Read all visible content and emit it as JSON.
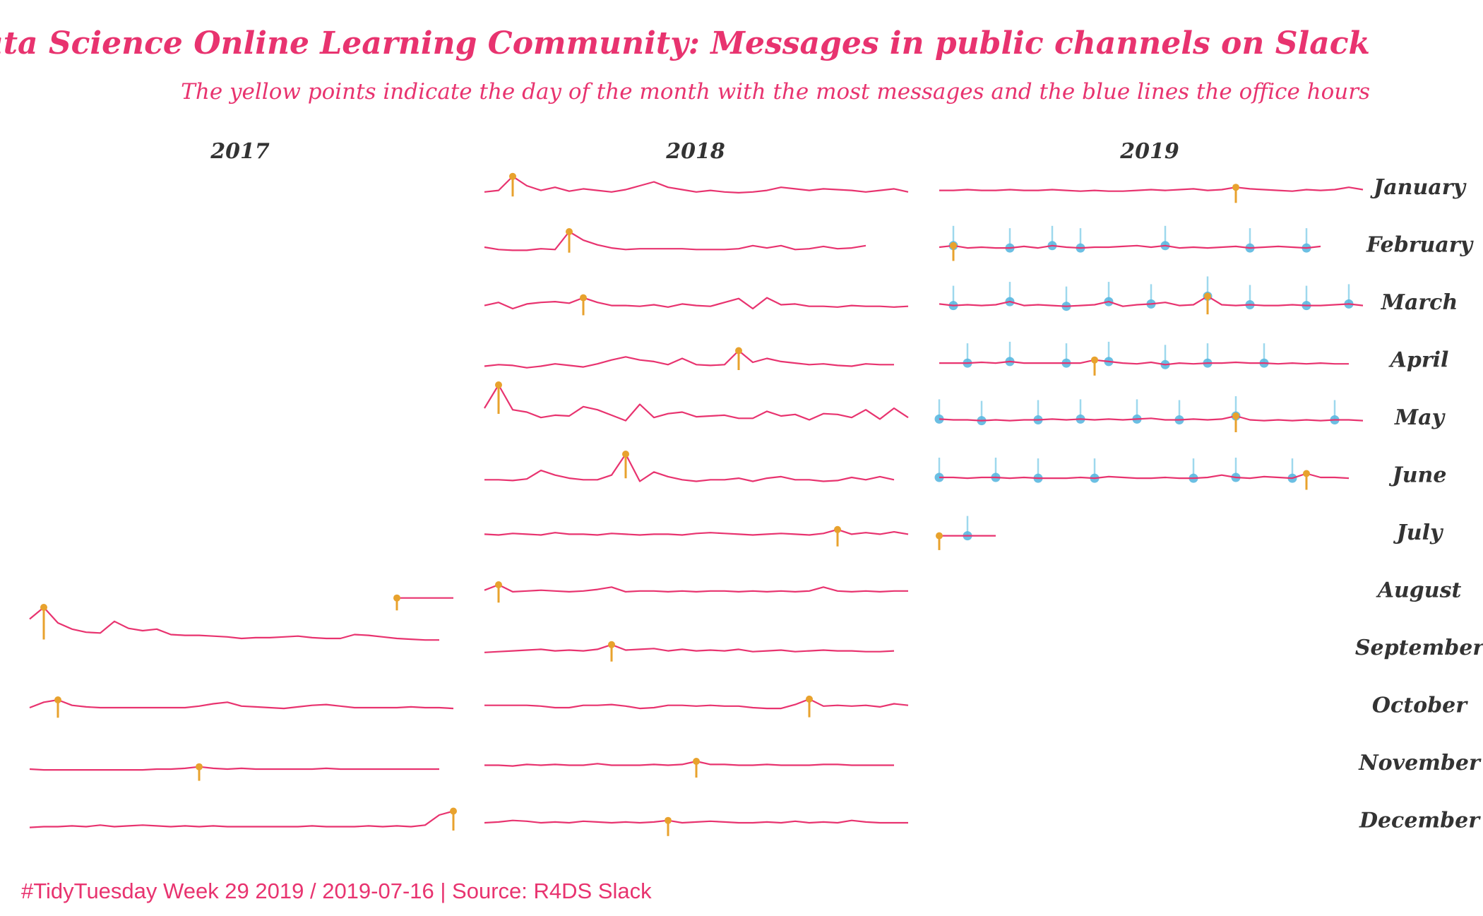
{
  "chart_data": {
    "type": "line",
    "title": "R for Data Science Online Learning Community: Messages in public channels on Slack",
    "subtitle": "The yellow points indicate the day of the month with the most messages and the blue lines the office hours",
    "caption": "#TidyTuesday Week 29 2019 / 2019-07-16 | Source: R4DS Slack",
    "years": [
      "2017",
      "2018",
      "2019"
    ],
    "months": [
      "January",
      "February",
      "March",
      "April",
      "May",
      "June",
      "July",
      "August",
      "September",
      "October",
      "November",
      "December"
    ],
    "colors": {
      "line": "#e8336f",
      "peak": "#e8a22d",
      "office_hours": "#7ecbe8",
      "office_hours_point": "#5bb8e0",
      "title": "#e8336f",
      "labels": "#333333"
    },
    "panels": [
      {
        "year": "2017",
        "month": "August",
        "first_day": 27,
        "days": 31,
        "peak_day": 27,
        "office_hours": [],
        "messages": [
          8,
          8,
          8,
          8,
          8
        ]
      },
      {
        "year": "2017",
        "month": "September",
        "first_day": 1,
        "days": 30,
        "peak_day": 2,
        "office_hours": [],
        "messages": [
          55,
          70,
          50,
          42,
          38,
          37,
          52,
          43,
          40,
          42,
          35,
          34,
          34,
          33,
          32,
          30,
          31,
          31,
          32,
          33,
          31,
          30,
          30,
          35,
          34,
          32,
          30,
          29,
          28,
          28
        ]
      },
      {
        "year": "2017",
        "month": "October",
        "first_day": 1,
        "days": 31,
        "peak_day": 3,
        "office_hours": [],
        "messages": [
          15,
          22,
          25,
          18,
          16,
          15,
          15,
          15,
          15,
          15,
          15,
          15,
          17,
          20,
          22,
          17,
          16,
          15,
          14,
          16,
          18,
          19,
          17,
          15,
          15,
          15,
          15,
          16,
          15,
          15,
          14
        ]
      },
      {
        "year": "2017",
        "month": "November",
        "first_day": 1,
        "days": 30,
        "peak_day": 13,
        "office_hours": [],
        "messages": [
          10,
          9,
          9,
          9,
          9,
          9,
          9,
          9,
          9,
          10,
          10,
          11,
          13,
          11,
          10,
          11,
          10,
          10,
          10,
          10,
          10,
          11,
          10,
          10,
          10,
          10,
          10,
          10,
          10,
          10
        ]
      },
      {
        "year": "2017",
        "month": "December",
        "first_day": 1,
        "days": 31,
        "peak_day": 31,
        "office_hours": [],
        "messages": [
          9,
          10,
          10,
          11,
          10,
          12,
          10,
          11,
          12,
          11,
          10,
          11,
          10,
          11,
          10,
          10,
          10,
          10,
          10,
          10,
          11,
          10,
          10,
          10,
          11,
          10,
          11,
          10,
          12,
          25,
          30
        ]
      },
      {
        "year": "2018",
        "month": "January",
        "first_day": 1,
        "days": 31,
        "peak_day": 3,
        "office_hours": [],
        "messages": [
          12,
          14,
          32,
          20,
          14,
          18,
          13,
          16,
          14,
          12,
          15,
          20,
          25,
          18,
          15,
          12,
          14,
          12,
          11,
          12,
          14,
          18,
          16,
          14,
          16,
          15,
          14,
          12,
          14,
          16,
          12
        ]
      },
      {
        "year": "2018",
        "month": "February",
        "first_day": 1,
        "days": 28,
        "peak_day": 7,
        "office_hours": [],
        "messages": [
          15,
          12,
          11,
          11,
          13,
          12,
          35,
          24,
          18,
          14,
          12,
          13,
          13,
          13,
          13,
          12,
          12,
          12,
          13,
          17,
          14,
          17,
          12,
          13,
          16,
          13,
          14,
          17
        ]
      },
      {
        "year": "2018",
        "month": "March",
        "first_day": 1,
        "days": 31,
        "peak_day": 8,
        "office_hours": [],
        "messages": [
          14,
          18,
          10,
          16,
          18,
          19,
          17,
          24,
          18,
          14,
          14,
          13,
          15,
          12,
          16,
          14,
          13,
          18,
          23,
          10,
          24,
          15,
          16,
          13,
          13,
          12,
          14,
          13,
          13,
          12,
          13
        ]
      },
      {
        "year": "2018",
        "month": "April",
        "first_day": 1,
        "days": 30,
        "peak_day": 19,
        "office_hours": [],
        "messages": [
          10,
          12,
          11,
          8,
          10,
          13,
          11,
          9,
          13,
          18,
          22,
          18,
          16,
          12,
          20,
          12,
          11,
          12,
          30,
          15,
          20,
          16,
          14,
          12,
          13,
          11,
          10,
          13,
          12,
          12
        ]
      },
      {
        "year": "2018",
        "month": "May",
        "first_day": 1,
        "days": 31,
        "peak_day": 2,
        "office_hours": [],
        "messages": [
          30,
          60,
          28,
          25,
          18,
          21,
          20,
          32,
          28,
          21,
          14,
          35,
          18,
          23,
          25,
          19,
          20,
          21,
          17,
          17,
          26,
          20,
          22,
          15,
          23,
          22,
          18,
          28,
          16,
          30,
          18
        ]
      },
      {
        "year": "2018",
        "month": "June",
        "first_day": 1,
        "days": 30,
        "peak_day": 11,
        "office_hours": [],
        "messages": [
          12,
          12,
          11,
          13,
          24,
          18,
          14,
          12,
          12,
          18,
          45,
          10,
          22,
          16,
          12,
          10,
          12,
          12,
          14,
          10,
          14,
          16,
          12,
          12,
          10,
          11,
          15,
          12,
          16,
          12
        ]
      },
      {
        "year": "2018",
        "month": "July",
        "first_day": 1,
        "days": 31,
        "peak_day": 26,
        "office_hours": [],
        "messages": [
          16,
          15,
          17,
          16,
          15,
          18,
          16,
          16,
          15,
          17,
          16,
          15,
          16,
          16,
          15,
          17,
          18,
          17,
          16,
          15,
          16,
          17,
          16,
          15,
          17,
          22,
          16,
          18,
          16,
          19,
          16
        ]
      },
      {
        "year": "2018",
        "month": "August",
        "first_day": 1,
        "days": 31,
        "peak_day": 2,
        "office_hours": [],
        "messages": [
          18,
          25,
          16,
          17,
          18,
          17,
          16,
          17,
          19,
          22,
          16,
          17,
          17,
          16,
          17,
          16,
          17,
          17,
          16,
          17,
          16,
          17,
          16,
          17,
          22,
          17,
          16,
          17,
          16,
          17,
          17
        ]
      },
      {
        "year": "2018",
        "month": "September",
        "first_day": 1,
        "days": 30,
        "peak_day": 10,
        "office_hours": [],
        "messages": [
          12,
          13,
          14,
          15,
          16,
          14,
          15,
          14,
          16,
          22,
          15,
          16,
          17,
          14,
          16,
          14,
          15,
          14,
          16,
          13,
          14,
          15,
          13,
          14,
          15,
          14,
          14,
          13,
          13,
          14
        ]
      },
      {
        "year": "2018",
        "month": "October",
        "first_day": 1,
        "days": 31,
        "peak_day": 24,
        "office_hours": [],
        "messages": [
          18,
          18,
          18,
          18,
          17,
          15,
          15,
          18,
          18,
          19,
          17,
          14,
          15,
          18,
          18,
          17,
          18,
          17,
          17,
          15,
          14,
          14,
          19,
          26,
          17,
          18,
          17,
          18,
          16,
          20,
          18
        ]
      },
      {
        "year": "2018",
        "month": "November",
        "first_day": 1,
        "days": 30,
        "peak_day": 16,
        "office_hours": [],
        "messages": [
          15,
          15,
          14,
          16,
          15,
          16,
          15,
          15,
          17,
          15,
          15,
          15,
          16,
          15,
          16,
          20,
          16,
          16,
          15,
          15,
          16,
          15,
          15,
          15,
          16,
          16,
          15,
          15,
          15,
          15
        ]
      },
      {
        "year": "2018",
        "month": "December",
        "first_day": 1,
        "days": 31,
        "peak_day": 14,
        "office_hours": [],
        "messages": [
          15,
          16,
          18,
          17,
          15,
          16,
          15,
          17,
          16,
          15,
          16,
          15,
          16,
          18,
          15,
          16,
          17,
          16,
          15,
          15,
          16,
          15,
          17,
          15,
          16,
          15,
          18,
          16,
          15,
          15,
          15
        ]
      },
      {
        "year": "2019",
        "month": "January",
        "first_day": 1,
        "days": 31,
        "peak_day": 22,
        "office_hours": [],
        "messages": [
          14,
          14,
          15,
          14,
          14,
          15,
          14,
          14,
          15,
          14,
          13,
          14,
          13,
          13,
          14,
          15,
          14,
          15,
          16,
          14,
          15,
          18,
          16,
          15,
          14,
          13,
          15,
          14,
          15,
          18,
          15
        ]
      },
      {
        "year": "2019",
        "month": "February",
        "first_day": 1,
        "days": 28,
        "peak_day": 2,
        "office_hours": [
          2,
          6,
          9,
          11,
          17,
          23,
          27
        ],
        "messages": [
          15,
          17,
          14,
          15,
          14,
          14,
          16,
          14,
          17,
          15,
          14,
          15,
          15,
          16,
          17,
          15,
          17,
          14,
          15,
          14,
          15,
          16,
          14,
          15,
          16,
          15,
          14,
          16
        ]
      },
      {
        "year": "2019",
        "month": "March",
        "first_day": 1,
        "days": 31,
        "peak_day": 20,
        "office_hours": [
          2,
          6,
          10,
          13,
          16,
          20,
          23,
          27,
          30
        ],
        "messages": [
          16,
          14,
          15,
          14,
          15,
          19,
          14,
          15,
          14,
          13,
          14,
          15,
          19,
          13,
          15,
          16,
          18,
          14,
          15,
          26,
          15,
          14,
          15,
          14,
          14,
          15,
          14,
          14,
          15,
          16,
          14
        ]
      },
      {
        "year": "2019",
        "month": "April",
        "first_day": 1,
        "days": 30,
        "peak_day": 12,
        "office_hours": [
          3,
          6,
          10,
          13,
          17,
          20,
          24
        ],
        "messages": [
          14,
          14,
          14,
          15,
          14,
          16,
          14,
          14,
          14,
          14,
          14,
          18,
          16,
          14,
          13,
          15,
          12,
          14,
          13,
          14,
          14,
          15,
          14,
          14,
          13,
          14,
          13,
          14,
          13,
          13
        ]
      },
      {
        "year": "2019",
        "month": "May",
        "first_day": 1,
        "days": 31,
        "peak_day": 22,
        "office_hours": [
          1,
          4,
          8,
          11,
          15,
          18,
          22,
          29
        ],
        "messages": [
          16,
          15,
          15,
          14,
          15,
          14,
          15,
          15,
          16,
          15,
          16,
          15,
          16,
          15,
          16,
          17,
          15,
          15,
          16,
          15,
          16,
          20,
          15,
          14,
          15,
          14,
          15,
          14,
          15,
          15,
          14
        ]
      },
      {
        "year": "2019",
        "month": "June",
        "first_day": 1,
        "days": 30,
        "peak_day": 27,
        "office_hours": [
          1,
          5,
          8,
          12,
          19,
          22,
          26
        ],
        "messages": [
          15,
          15,
          14,
          15,
          15,
          14,
          15,
          14,
          14,
          14,
          15,
          14,
          16,
          15,
          14,
          14,
          15,
          14,
          14,
          15,
          18,
          15,
          14,
          16,
          15,
          14,
          20,
          15,
          15,
          14
        ]
      },
      {
        "year": "2019",
        "month": "July",
        "first_day": 1,
        "days": 5,
        "peak_day": 1,
        "office_hours": [
          3
        ],
        "messages": [
          14,
          14,
          14,
          14,
          14
        ]
      }
    ]
  }
}
